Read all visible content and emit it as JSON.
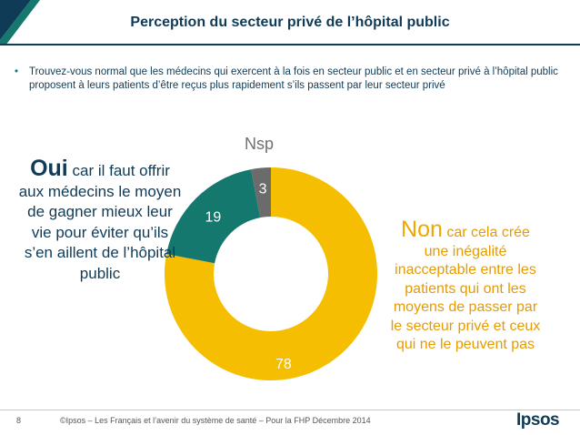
{
  "title": "Perception du secteur privé de l’hôpital public",
  "question": "Trouvez-vous normal que les médecins qui exercent à la fois en secteur public et en secteur privé à l’hôpital public proposent à leurs patients d’être reçus plus rapidement s’ils passent par leur secteur privé",
  "bullet": "•",
  "oui": {
    "word": "Oui",
    "text": " car il faut offrir aux médecins le moyen de gagner mieux leur vie pour éviter qu’ils s’en aillent de l’hôpital public"
  },
  "non": {
    "word": "Non",
    "text": " car cela crée une inégalité inacceptable entre les patients qui ont les moyens de passer par le secteur privé et ceux qui ne le peuvent pas"
  },
  "chart_data": {
    "type": "pie",
    "donut": true,
    "slices": [
      {
        "key": "non",
        "value": 78,
        "label": "78",
        "color": "#f6be00"
      },
      {
        "key": "oui",
        "value": 19,
        "label": "19",
        "color": "#14786e"
      },
      {
        "key": "nsp",
        "value": 3,
        "label": "3",
        "color": "#6b6b6b"
      }
    ],
    "outside_label": "Nsp"
  },
  "footer": {
    "page": "8",
    "text": "©Ipsos – Les Français et l’avenir du système de santé – Pour la FHP  Décembre 2014",
    "brand": "Ipsos"
  }
}
